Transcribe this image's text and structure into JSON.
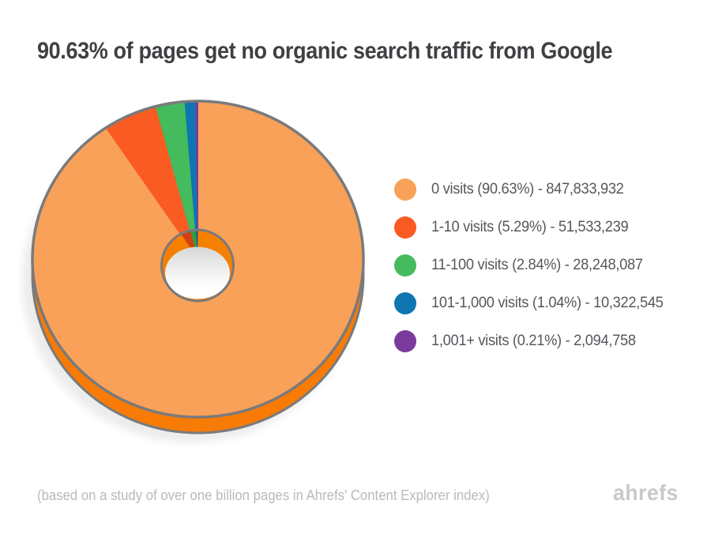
{
  "page": {
    "title": "90.63% of pages get no organic search traffic from Google",
    "footnote": "(based on a study of over one billion pages in Ahrefs' Content Explorer index)",
    "brand": "ahrefs",
    "background_color": "#FFFFFF",
    "title_color": "#3E4043",
    "footnote_color": "#BABABB",
    "brand_color": "#C9C9CA"
  },
  "chart_data": {
    "type": "pie",
    "donut": true,
    "title": "90.63% of pages get no organic search traffic from Google",
    "start_angle_deg": 0,
    "direction": "clockwise",
    "legend_position": "right",
    "categories": [
      "0 visits",
      "1-10 visits",
      "11-100 visits",
      "101-1,000 visits",
      "1,001+ visits"
    ],
    "series": [
      {
        "label": "0 visits",
        "percent": 90.63,
        "pages": 847833932,
        "legend": "0 visits (90.63%) - 847,833,932",
        "color": "#F9A158",
        "wall_color": "#F57F00"
      },
      {
        "label": "1-10 visits",
        "percent": 5.29,
        "pages": 51533239,
        "legend": "1-10 visits (5.29%) - 51,533,239",
        "color": "#F95B22",
        "wall_color": "#D04010"
      },
      {
        "label": "11-100 visits",
        "percent": 2.84,
        "pages": 28248087,
        "legend": "11-100 visits (2.84%) - 28,248,087",
        "color": "#44BB5C",
        "wall_color": "#2F9E44"
      },
      {
        "label": "101-1,000 visits",
        "percent": 1.04,
        "pages": 10322545,
        "legend": "101-1,000 visits (1.04%) - 10,322,545",
        "color": "#0F76B2",
        "wall_color": "#0D5F94"
      },
      {
        "label": "1,001+ visits",
        "percent": 0.21,
        "pages": 2094758,
        "legend": "1,001+ visits (0.21%) - 2,094,758",
        "color": "#7B3B9D",
        "wall_color": "#5E2C80"
      }
    ],
    "style": {
      "rim_color": "#F87B05",
      "outline_color": "#797A7C",
      "shadow_color": "#ECECEC",
      "hole_floor_top": "#D6D6D6",
      "hole_floor_mid": "#EDEDED",
      "hole_floor_bottom": "#FFFFFF"
    }
  }
}
